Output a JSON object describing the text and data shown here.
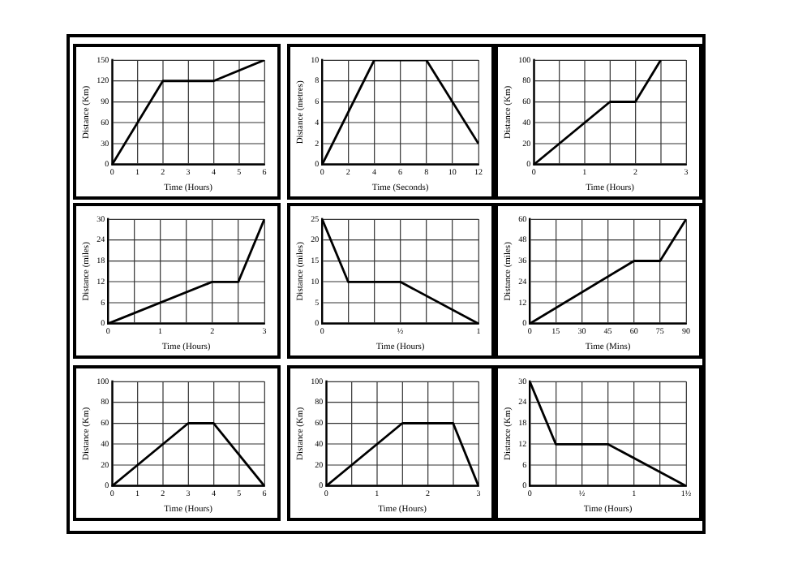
{
  "chart_data": [
    {
      "type": "line",
      "xlabel": "Time (Hours)",
      "ylabel": "Distance (Km)",
      "x": [
        0,
        2,
        4,
        6
      ],
      "values": [
        0,
        120,
        120,
        150
      ],
      "color": "#000000",
      "xlim": [
        0,
        6
      ],
      "ylim": [
        0,
        150
      ],
      "xticks": [
        0,
        1,
        2,
        3,
        4,
        5,
        6
      ],
      "yticks": [
        0,
        30,
        60,
        90,
        120,
        150
      ],
      "grid": true,
      "marker": "none"
    },
    {
      "type": "line",
      "xlabel": "Time (Seconds)",
      "ylabel": "Distance (metres)",
      "x": [
        0,
        4,
        8,
        12
      ],
      "values": [
        0,
        10,
        10,
        2
      ],
      "color": "#000000",
      "xlim": [
        0,
        12
      ],
      "ylim": [
        0,
        10
      ],
      "xticks": [
        0,
        2,
        4,
        6,
        8,
        10,
        12
      ],
      "yticks": [
        0,
        2,
        4,
        6,
        8,
        10
      ],
      "grid": true,
      "marker": "none"
    },
    {
      "type": "line",
      "xlabel": "Time (Hours)",
      "ylabel": "Distance (Km)",
      "x": [
        0,
        1.5,
        2,
        2.5
      ],
      "values": [
        0,
        60,
        60,
        100
      ],
      "color": "#000000",
      "xlim": [
        0,
        3
      ],
      "ylim": [
        0,
        100
      ],
      "xticks": [
        0,
        {
          "value": 0.5,
          "label": null
        },
        1,
        {
          "value": 1.5,
          "label": null
        },
        2,
        {
          "value": 2.5,
          "label": null
        },
        3
      ],
      "yticks": [
        0,
        20,
        40,
        60,
        80,
        100
      ],
      "grid": true,
      "marker": "none"
    },
    {
      "type": "line",
      "xlabel": "Time (Hours)",
      "ylabel": "Distance (miles)",
      "x": [
        0,
        2,
        2.5,
        3
      ],
      "values": [
        0,
        12,
        12,
        30
      ],
      "color": "#000000",
      "xlim": [
        0,
        3
      ],
      "ylim": [
        0,
        30
      ],
      "xticks": [
        0,
        {
          "value": 0.5,
          "label": null
        },
        1,
        {
          "value": 1.5,
          "label": null
        },
        2,
        {
          "value": 2.5,
          "label": null
        },
        3
      ],
      "yticks": [
        0,
        6,
        12,
        18,
        24,
        30
      ],
      "grid": true,
      "marker": "none"
    },
    {
      "type": "line",
      "xlabel": "Time (Hours)",
      "ylabel": "Distance (miles)",
      "x": [
        0,
        0.1667,
        0.5,
        1
      ],
      "values": [
        25,
        10,
        10,
        0
      ],
      "color": "#000000",
      "xlim": [
        0,
        1
      ],
      "ylim": [
        0,
        25
      ],
      "xticks": [
        0,
        {
          "value": 0.1667,
          "label": null
        },
        {
          "value": 0.3333,
          "label": null
        },
        {
          "value": 0.5,
          "label": "½"
        },
        {
          "value": 0.6667,
          "label": null
        },
        {
          "value": 0.8333,
          "label": null
        },
        1
      ],
      "yticks": [
        0,
        5,
        10,
        15,
        20,
        25
      ],
      "grid": true,
      "marker": "none"
    },
    {
      "type": "line",
      "xlabel": "Time (Mins)",
      "ylabel": "Distance (miles)",
      "x": [
        0,
        60,
        75,
        90
      ],
      "values": [
        0,
        36,
        36,
        60
      ],
      "color": "#000000",
      "xlim": [
        0,
        90
      ],
      "ylim": [
        0,
        60
      ],
      "xticks": [
        0,
        15,
        30,
        45,
        60,
        75,
        90
      ],
      "yticks": [
        0,
        12,
        24,
        36,
        48,
        60
      ],
      "grid": true,
      "marker": "none"
    },
    {
      "type": "line",
      "xlabel": "Time (Hours)",
      "ylabel": "Distance (Km)",
      "x": [
        0,
        3,
        4,
        6
      ],
      "values": [
        0,
        60,
        60,
        0
      ],
      "color": "#000000",
      "xlim": [
        0,
        6
      ],
      "ylim": [
        0,
        100
      ],
      "xticks": [
        0,
        1,
        2,
        3,
        4,
        5,
        6
      ],
      "yticks": [
        0,
        20,
        40,
        60,
        80,
        100
      ],
      "grid": true,
      "marker": "none"
    },
    {
      "type": "line",
      "xlabel": "Time (Hours)",
      "ylabel": "Distance (Km)",
      "x": [
        0,
        1.5,
        2.5,
        3
      ],
      "values": [
        0,
        60,
        60,
        0
      ],
      "color": "#000000",
      "xlim": [
        0,
        3
      ],
      "ylim": [
        0,
        100
      ],
      "xticks": [
        0,
        {
          "value": 0.5,
          "label": null
        },
        1,
        {
          "value": 1.5,
          "label": null
        },
        2,
        {
          "value": 2.5,
          "label": null
        },
        3
      ],
      "yticks": [
        0,
        20,
        40,
        60,
        80,
        100
      ],
      "grid": true,
      "marker": "none"
    },
    {
      "type": "line",
      "xlabel": "Time (Hours)",
      "ylabel": "Distance (Km)",
      "x": [
        0,
        0.25,
        0.75,
        1.5
      ],
      "values": [
        30,
        12,
        12,
        0
      ],
      "color": "#000000",
      "xlim": [
        0,
        1.5
      ],
      "ylim": [
        0,
        30
      ],
      "xticks": [
        0,
        {
          "value": 0.25,
          "label": null
        },
        {
          "value": 0.5,
          "label": "½"
        },
        {
          "value": 0.75,
          "label": null
        },
        1,
        {
          "value": 1.25,
          "label": null
        },
        {
          "value": 1.5,
          "label": "1½"
        }
      ],
      "yticks": [
        0,
        6,
        12,
        18,
        24,
        30
      ],
      "grid": true,
      "marker": "none"
    }
  ]
}
